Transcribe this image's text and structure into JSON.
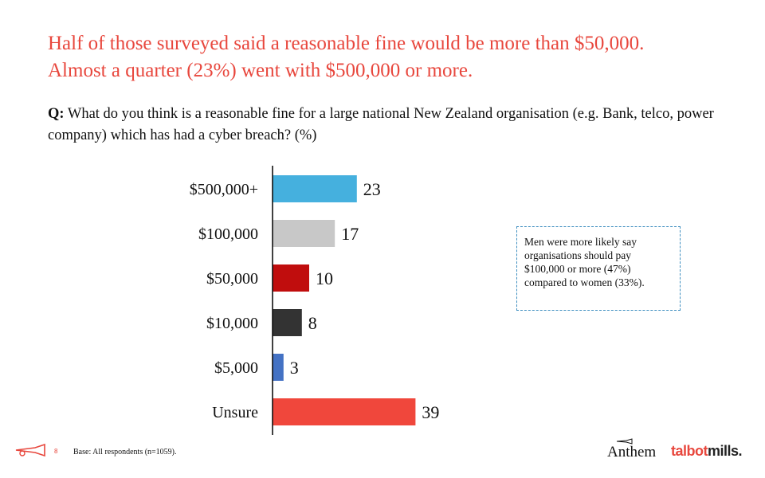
{
  "headline": {
    "line1": "Half of those surveyed said a reasonable fine would be more than $50,000.",
    "line2": "Almost a quarter (23%) went with $500,000 or more."
  },
  "question": {
    "prefix": "Q:",
    "text": " What do you think is a reasonable fine for a large national New Zealand organisation (e.g.  Bank, telco, power company) which has had a cyber breach? (%)"
  },
  "chart_data": {
    "type": "bar",
    "orientation": "horizontal",
    "categories": [
      "$500,000+",
      "$100,000",
      "$50,000",
      "$10,000",
      "$5,000",
      "Unsure"
    ],
    "values": [
      23,
      17,
      10,
      8,
      3,
      39
    ],
    "colors": [
      "#45b0de",
      "#c8c8c8",
      "#c00d0d",
      "#333333",
      "#4472c4",
      "#f0473c"
    ],
    "data_labels": [
      "23",
      "17",
      "10",
      "8",
      "3",
      "39"
    ],
    "title": "",
    "xlabel": "",
    "ylabel": "",
    "xlim": [
      0,
      45
    ],
    "grid": false,
    "legend": "none"
  },
  "callout": {
    "text": "Men were more likely say organisations should pay $100,000 or more (47%) compared to women (33%)."
  },
  "footer": {
    "page_number": "8",
    "base_note": "Base: All respondents (n=1059).",
    "logo_anthem": "Anthem",
    "logo_talbot_part1": "talbot",
    "logo_talbot_part2": "mills."
  },
  "icons": {
    "bugle": "bugle-icon"
  },
  "colors": {
    "accent": "#e8473d",
    "callout_border": "#3f8fc0"
  }
}
